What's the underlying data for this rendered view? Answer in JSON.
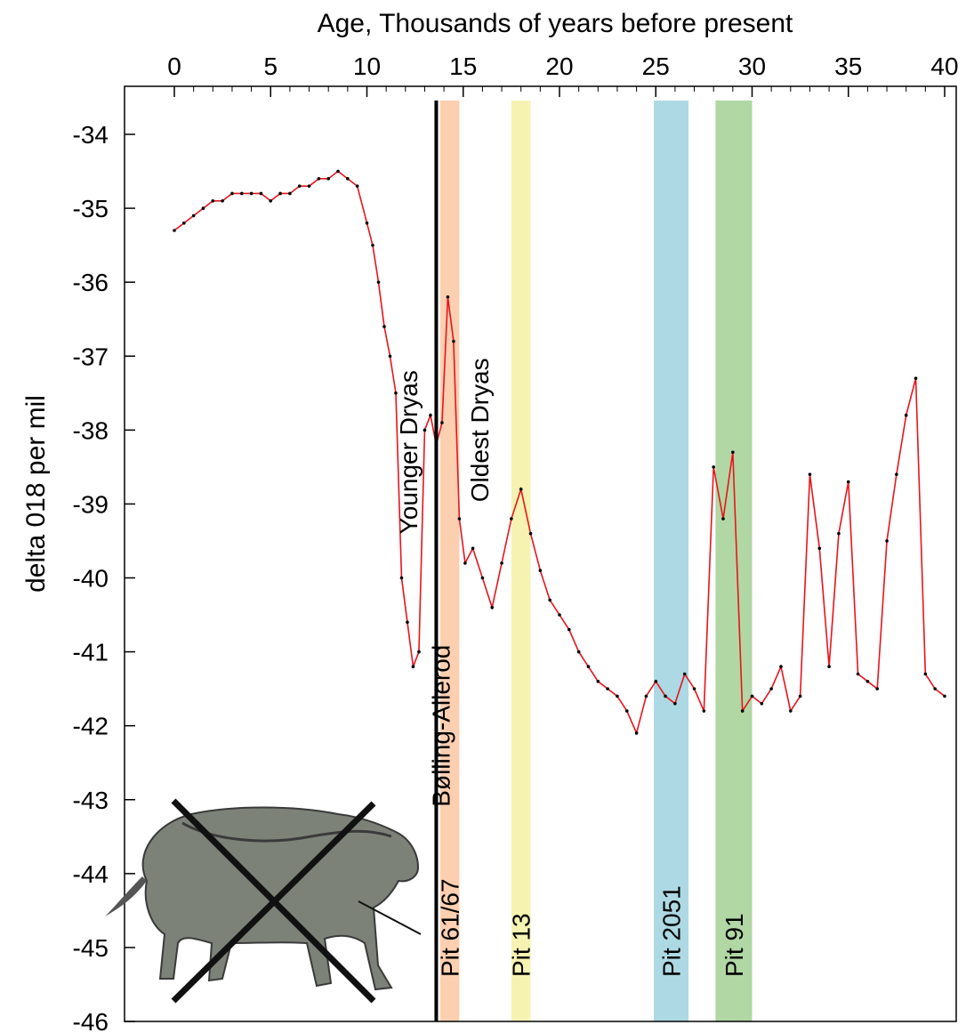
{
  "chart_data": {
    "type": "line",
    "title": "",
    "xlabel": "Age, Thousands of years before present",
    "ylabel": "delta 018 per mil",
    "xlim": [
      0,
      40
    ],
    "ylim": [
      -46,
      -33.5
    ],
    "x_ticks": [
      "0",
      "5",
      "10",
      "15",
      "20",
      "25",
      "30",
      "35",
      "40"
    ],
    "y_ticks": [
      "-34",
      "-35",
      "-36",
      "-37",
      "-38",
      "-39",
      "-40",
      "-41",
      "-42",
      "-43",
      "-44",
      "-45",
      "-46"
    ],
    "grid": false,
    "line_color": "#e8141c",
    "marker_color": "#000000",
    "series": [
      {
        "x": [
          0,
          0.5,
          1,
          1.5,
          2,
          2.5,
          3,
          3.5,
          4,
          4.5,
          5,
          5.5,
          6,
          6.5,
          7,
          7.5,
          8,
          8.5,
          9,
          9.5,
          10,
          10.3,
          10.6,
          10.9,
          11.2,
          11.5,
          11.8,
          12.1,
          12.4,
          12.7,
          13,
          13.3,
          13.6,
          13.9,
          14.2,
          14.5,
          14.8,
          15.1,
          15.5,
          16,
          16.5,
          17,
          17.5,
          18,
          18.5,
          19,
          19.5,
          20,
          20.5,
          21,
          21.5,
          22,
          22.5,
          23,
          23.5,
          24,
          24.5,
          25,
          25.5,
          26,
          26.5,
          27,
          27.5,
          28,
          28.5,
          29,
          29.5,
          30,
          30.5,
          31,
          31.5,
          32,
          32.5,
          33,
          33.5,
          34,
          34.5,
          35,
          35.5,
          36,
          36.5,
          37,
          37.5,
          38,
          38.5,
          39,
          39.5,
          40
        ],
        "values": [
          -35.3,
          -35.2,
          -35.1,
          -35.0,
          -34.9,
          -34.9,
          -34.8,
          -34.8,
          -34.8,
          -34.8,
          -34.9,
          -34.8,
          -34.8,
          -34.7,
          -34.7,
          -34.6,
          -34.6,
          -34.5,
          -34.6,
          -34.7,
          -35.2,
          -35.5,
          -36.0,
          -36.6,
          -37.0,
          -37.5,
          -40.0,
          -40.6,
          -41.2,
          -41.0,
          -38.0,
          -37.8,
          -38.2,
          -37.9,
          -36.2,
          -36.8,
          -39.2,
          -39.8,
          -39.6,
          -40.0,
          -40.4,
          -39.8,
          -39.2,
          -38.8,
          -39.4,
          -39.9,
          -40.3,
          -40.5,
          -40.7,
          -41.0,
          -41.2,
          -41.4,
          -41.5,
          -41.6,
          -41.8,
          -42.1,
          -41.6,
          -41.4,
          -41.6,
          -41.7,
          -41.3,
          -41.5,
          -41.8,
          -38.5,
          -39.2,
          -38.3,
          -41.8,
          -41.6,
          -41.7,
          -41.5,
          -41.2,
          -41.8,
          -41.6,
          -38.6,
          -39.6,
          -41.2,
          -39.4,
          -38.7,
          -41.3,
          -41.4,
          -41.5,
          -39.5,
          -38.6,
          -37.8,
          -37.3,
          -41.3,
          -41.5,
          -41.6
        ]
      }
    ],
    "bands": [
      {
        "x0": 13.8,
        "x1": 14.8,
        "color": "#fbcfb0",
        "label": "Pit 61/67"
      },
      {
        "x0": 17.5,
        "x1": 18.5,
        "color": "#f6f3b2",
        "label": "Pit 13"
      },
      {
        "x0": 24.9,
        "x1": 26.7,
        "color": "#acd9e3",
        "label": "Pit 2051"
      },
      {
        "x0": 28.1,
        "x1": 30.0,
        "color": "#b1d7a4",
        "label": "Pit 91"
      }
    ],
    "vline": {
      "x": 13.6,
      "color": "#000000"
    },
    "annotations": [
      {
        "text": "Younger Dryas",
        "x": 12.6,
        "y": -38.3
      },
      {
        "text": "Oldest Dryas",
        "x": 16.3,
        "y": -38.0
      },
      {
        "text": "Bølling-Allerod",
        "x": 14.3,
        "y": -42.0
      }
    ],
    "image_note_icon": "crossed-out-wolf-illustration"
  }
}
